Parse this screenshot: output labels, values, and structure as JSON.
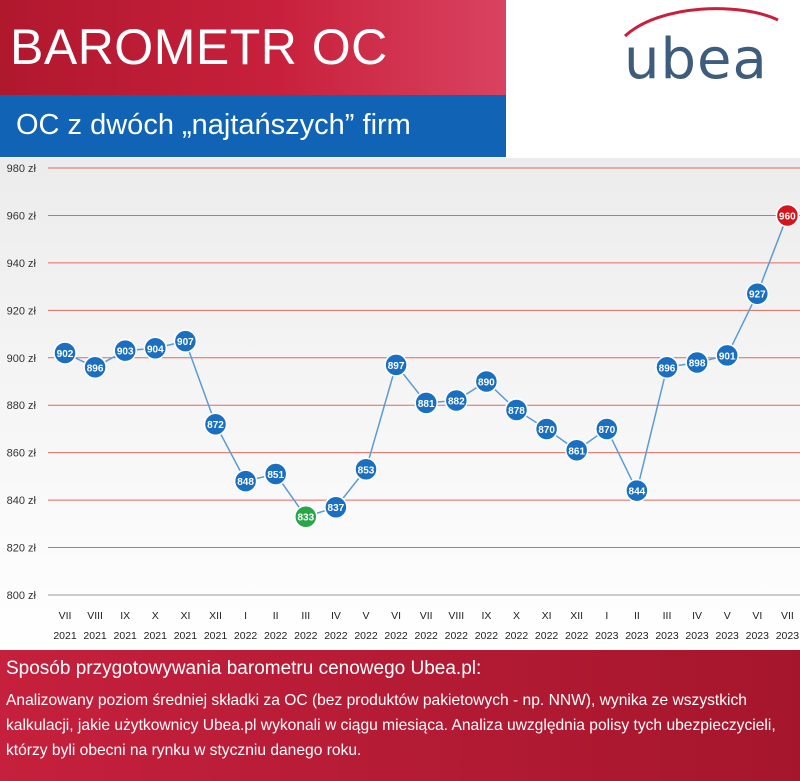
{
  "header": {
    "title": "BAROMETR OC",
    "subtitle": "OC z dwóch „najtańszych” firm",
    "logo_text": "ubea"
  },
  "colors": {
    "red": "#c8203c",
    "blue": "#1163b6",
    "marker": "#1a6fc1",
    "min_marker": "#2aa64a",
    "max_marker": "#d4161c",
    "gridline": "#e06a5a",
    "series_line": "#5b9bd5"
  },
  "chart_data": {
    "type": "line",
    "title": "",
    "xlabel": "",
    "ylabel": "",
    "ylim": [
      800,
      980
    ],
    "ytick_step": 20,
    "ytick_unit": "zł",
    "grid": true,
    "legend": "none",
    "categories": [
      {
        "month": "VII",
        "year": "2021"
      },
      {
        "month": "VIII",
        "year": "2021"
      },
      {
        "month": "IX",
        "year": "2021"
      },
      {
        "month": "X",
        "year": "2021"
      },
      {
        "month": "XI",
        "year": "2021"
      },
      {
        "month": "XII",
        "year": "2021"
      },
      {
        "month": "I",
        "year": "2022"
      },
      {
        "month": "II",
        "year": "2022"
      },
      {
        "month": "III",
        "year": "2022"
      },
      {
        "month": "IV",
        "year": "2022"
      },
      {
        "month": "V",
        "year": "2022"
      },
      {
        "month": "VI",
        "year": "2022"
      },
      {
        "month": "VII",
        "year": "2022"
      },
      {
        "month": "VIII",
        "year": "2022"
      },
      {
        "month": "IX",
        "year": "2022"
      },
      {
        "month": "X",
        "year": "2022"
      },
      {
        "month": "XI",
        "year": "2022"
      },
      {
        "month": "XII",
        "year": "2022"
      },
      {
        "month": "I",
        "year": "2023"
      },
      {
        "month": "II",
        "year": "2023"
      },
      {
        "month": "III",
        "year": "2023"
      },
      {
        "month": "IV",
        "year": "2023"
      },
      {
        "month": "V",
        "year": "2023"
      },
      {
        "month": "VI",
        "year": "2023"
      },
      {
        "month": "VII",
        "year": "2023"
      }
    ],
    "series": [
      {
        "values": [
          902,
          896,
          903,
          904,
          907,
          872,
          848,
          851,
          833,
          837,
          853,
          897,
          881,
          882,
          890,
          878,
          870,
          861,
          870,
          844,
          896,
          898,
          901,
          927,
          960
        ]
      }
    ],
    "min_index": 8,
    "max_index": 24
  },
  "footer": {
    "heading": "Sposób przygotowywania barometru cenowego Ubea.pl:",
    "text": "Analizowany poziom średniej składki za OC (bez produktów pakietowych - np. NNW), wynika ze wszystkich kalkulacji, jakie użytkownicy Ubea.pl wykonali w ciągu miesiąca. Analiza uwzględnia polisy tych ubezpieczycieli, którzy byli obecni na rynku w styczniu danego roku."
  }
}
